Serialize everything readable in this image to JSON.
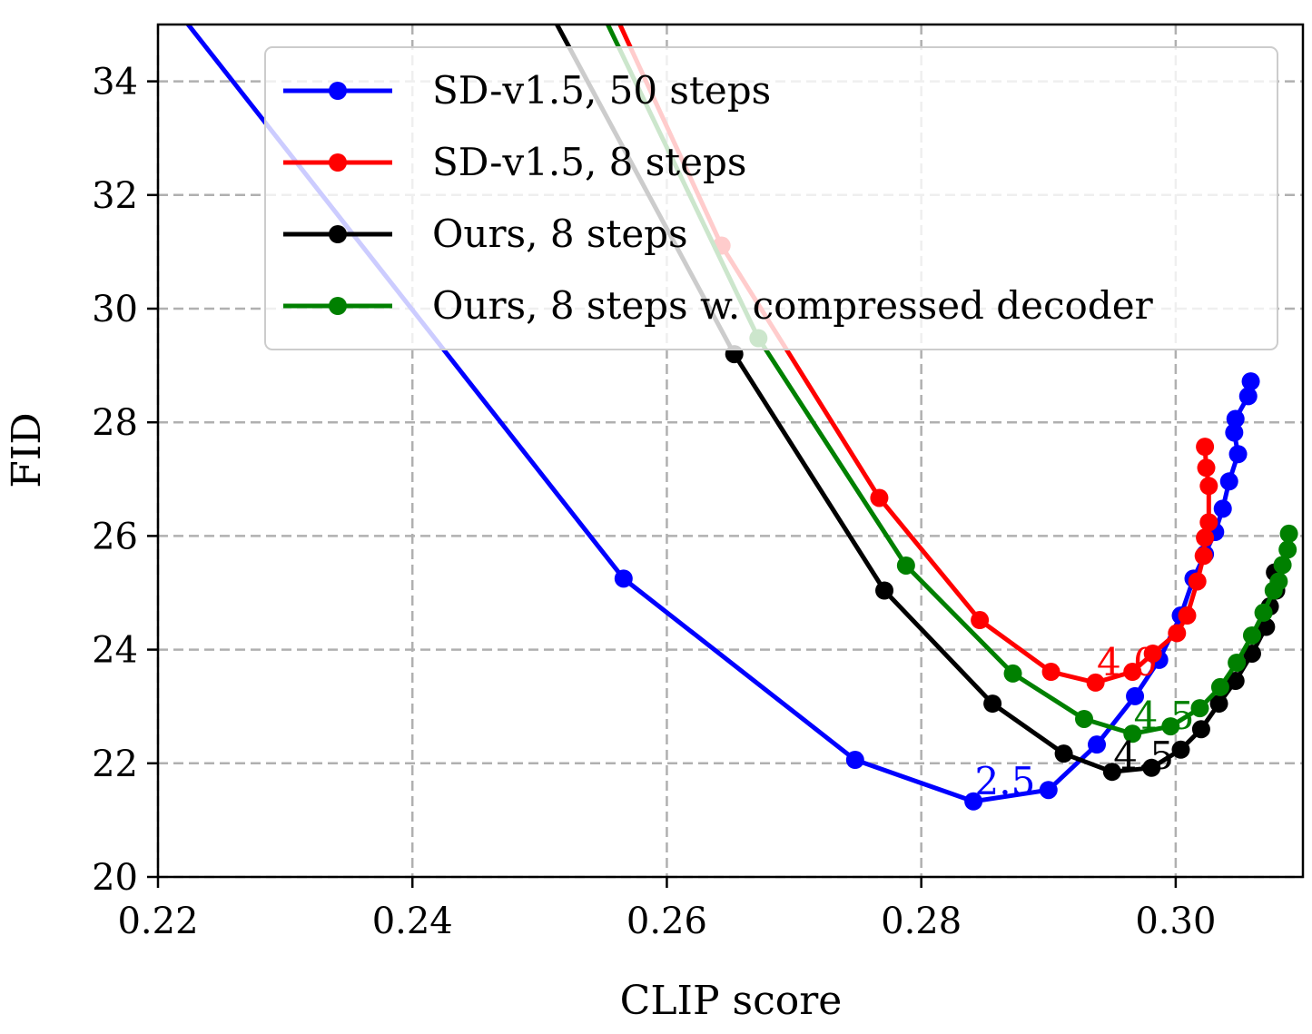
{
  "chart_data": {
    "type": "line",
    "xlabel": "CLIP score",
    "ylabel": "FID",
    "xlim": [
      0.22,
      0.31
    ],
    "ylim": [
      20,
      35
    ],
    "xticks": [
      0.22,
      0.24,
      0.26,
      0.28,
      0.3
    ],
    "xtick_labels": [
      "0.22",
      "0.24",
      "0.26",
      "0.28",
      "0.30"
    ],
    "yticks": [
      20,
      22,
      24,
      26,
      28,
      30,
      32,
      34
    ],
    "ytick_labels": [
      "20",
      "22",
      "24",
      "26",
      "28",
      "30",
      "32",
      "34"
    ],
    "grid": true,
    "legend_position": "top-right",
    "series": [
      {
        "name": "SD-v1.5, 50 steps",
        "color": "#0000ff",
        "x": [
          0.215,
          0.2566,
          0.2748,
          0.2841,
          0.29,
          0.2938,
          0.2968,
          0.2987,
          0.3004,
          0.3014,
          0.3023,
          0.3031,
          0.3037,
          0.3042,
          0.3049,
          0.3046,
          0.3047,
          0.3057,
          0.3059
        ],
        "y": [
          37.1,
          25.25,
          22.06,
          21.33,
          21.53,
          22.33,
          23.18,
          23.82,
          24.6,
          25.25,
          25.68,
          26.07,
          26.48,
          26.96,
          27.44,
          27.82,
          28.06,
          28.46,
          28.72
        ]
      },
      {
        "name": "SD-v1.5, 8 steps",
        "color": "#ff0000",
        "x": [
          0.252,
          0.2643,
          0.2767,
          0.2846,
          0.2902,
          0.2937,
          0.2966,
          0.2982,
          0.3001,
          0.3009,
          0.3017,
          0.3022,
          0.3023,
          0.3026,
          0.3026,
          0.3024,
          0.3023
        ],
        "y": [
          37.1,
          31.11,
          26.67,
          24.52,
          23.61,
          23.42,
          23.61,
          23.93,
          24.29,
          24.6,
          25.2,
          25.65,
          25.97,
          26.24,
          26.88,
          27.2,
          27.57
        ]
      },
      {
        "name": "Ours, 8 steps",
        "color": "#000000",
        "x": [
          0.248,
          0.2653,
          0.2771,
          0.2856,
          0.2912,
          0.295,
          0.2981,
          0.3004,
          0.302,
          0.3034,
          0.3047,
          0.306,
          0.3071,
          0.3074,
          0.3079,
          0.3078
        ],
        "y": [
          36.4,
          29.2,
          25.04,
          23.05,
          22.17,
          21.85,
          21.92,
          22.24,
          22.6,
          23.05,
          23.45,
          23.93,
          24.4,
          24.76,
          25.04,
          25.36
        ]
      },
      {
        "name": "Ours, 8 steps w. compressed decoder",
        "color": "#008000",
        "x": [
          0.25,
          0.2672,
          0.2788,
          0.2872,
          0.2928,
          0.2966,
          0.2996,
          0.3019,
          0.3035,
          0.3048,
          0.306,
          0.3069,
          0.3077,
          0.3081,
          0.3084,
          0.3088,
          0.3089
        ],
        "y": [
          37.5,
          29.48,
          25.48,
          23.58,
          22.78,
          22.52,
          22.65,
          22.97,
          23.34,
          23.77,
          24.25,
          24.65,
          25.04,
          25.2,
          25.49,
          25.76,
          26.04
        ]
      }
    ],
    "annotations": [
      {
        "text": "2.5",
        "x": 0.2842,
        "y": 21.45,
        "color": "#0000ff"
      },
      {
        "text": "4.0",
        "x": 0.2938,
        "y": 23.55,
        "color": "#ff0000"
      },
      {
        "text": "4.5",
        "x": 0.2967,
        "y": 22.6,
        "color": "#008000"
      },
      {
        "text": "4.5",
        "x": 0.2951,
        "y": 21.9,
        "color": "#000000"
      }
    ]
  }
}
